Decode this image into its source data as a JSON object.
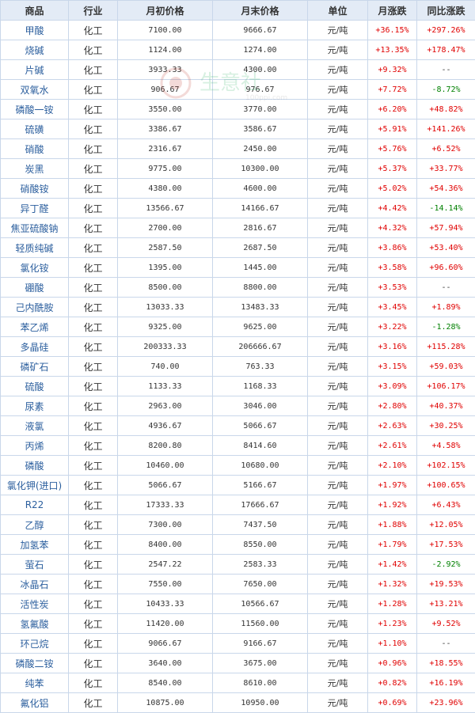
{
  "headers": [
    "商品",
    "行业",
    "月初价格",
    "月末价格",
    "单位",
    "月涨跌",
    "同比涨跌"
  ],
  "rows": [
    {
      "name": "甲酸",
      "industry": "化工",
      "start": "7100.00",
      "end": "9666.67",
      "unit": "元/吨",
      "mom": "+36.15%",
      "yoy": "+297.26%"
    },
    {
      "name": "烧碱",
      "industry": "化工",
      "start": "1124.00",
      "end": "1274.00",
      "unit": "元/吨",
      "mom": "+13.35%",
      "yoy": "+178.47%"
    },
    {
      "name": "片碱",
      "industry": "化工",
      "start": "3933.33",
      "end": "4300.00",
      "unit": "元/吨",
      "mom": "+9.32%",
      "yoy": "--"
    },
    {
      "name": "双氧水",
      "industry": "化工",
      "start": "906.67",
      "end": "976.67",
      "unit": "元/吨",
      "mom": "+7.72%",
      "yoy": "-8.72%"
    },
    {
      "name": "磷酸一铵",
      "industry": "化工",
      "start": "3550.00",
      "end": "3770.00",
      "unit": "元/吨",
      "mom": "+6.20%",
      "yoy": "+48.82%"
    },
    {
      "name": "硫磺",
      "industry": "化工",
      "start": "3386.67",
      "end": "3586.67",
      "unit": "元/吨",
      "mom": "+5.91%",
      "yoy": "+141.26%"
    },
    {
      "name": "硝酸",
      "industry": "化工",
      "start": "2316.67",
      "end": "2450.00",
      "unit": "元/吨",
      "mom": "+5.76%",
      "yoy": "+6.52%"
    },
    {
      "name": "炭黑",
      "industry": "化工",
      "start": "9775.00",
      "end": "10300.00",
      "unit": "元/吨",
      "mom": "+5.37%",
      "yoy": "+33.77%"
    },
    {
      "name": "硝酸铵",
      "industry": "化工",
      "start": "4380.00",
      "end": "4600.00",
      "unit": "元/吨",
      "mom": "+5.02%",
      "yoy": "+54.36%"
    },
    {
      "name": "异丁醛",
      "industry": "化工",
      "start": "13566.67",
      "end": "14166.67",
      "unit": "元/吨",
      "mom": "+4.42%",
      "yoy": "-14.14%"
    },
    {
      "name": "焦亚硫酸钠",
      "industry": "化工",
      "start": "2700.00",
      "end": "2816.67",
      "unit": "元/吨",
      "mom": "+4.32%",
      "yoy": "+57.94%"
    },
    {
      "name": "轻质纯碱",
      "industry": "化工",
      "start": "2587.50",
      "end": "2687.50",
      "unit": "元/吨",
      "mom": "+3.86%",
      "yoy": "+53.40%"
    },
    {
      "name": "氯化铵",
      "industry": "化工",
      "start": "1395.00",
      "end": "1445.00",
      "unit": "元/吨",
      "mom": "+3.58%",
      "yoy": "+96.60%"
    },
    {
      "name": "硼酸",
      "industry": "化工",
      "start": "8500.00",
      "end": "8800.00",
      "unit": "元/吨",
      "mom": "+3.53%",
      "yoy": "--"
    },
    {
      "name": "己内酰胺",
      "industry": "化工",
      "start": "13033.33",
      "end": "13483.33",
      "unit": "元/吨",
      "mom": "+3.45%",
      "yoy": "+1.89%"
    },
    {
      "name": "苯乙烯",
      "industry": "化工",
      "start": "9325.00",
      "end": "9625.00",
      "unit": "元/吨",
      "mom": "+3.22%",
      "yoy": "-1.28%"
    },
    {
      "name": "多晶硅",
      "industry": "化工",
      "start": "200333.33",
      "end": "206666.67",
      "unit": "元/吨",
      "mom": "+3.16%",
      "yoy": "+115.28%"
    },
    {
      "name": "磷矿石",
      "industry": "化工",
      "start": "740.00",
      "end": "763.33",
      "unit": "元/吨",
      "mom": "+3.15%",
      "yoy": "+59.03%"
    },
    {
      "name": "硫酸",
      "industry": "化工",
      "start": "1133.33",
      "end": "1168.33",
      "unit": "元/吨",
      "mom": "+3.09%",
      "yoy": "+106.17%"
    },
    {
      "name": "尿素",
      "industry": "化工",
      "start": "2963.00",
      "end": "3046.00",
      "unit": "元/吨",
      "mom": "+2.80%",
      "yoy": "+40.37%"
    },
    {
      "name": "液氯",
      "industry": "化工",
      "start": "4936.67",
      "end": "5066.67",
      "unit": "元/吨",
      "mom": "+2.63%",
      "yoy": "+30.25%"
    },
    {
      "name": "丙烯",
      "industry": "化工",
      "start": "8200.80",
      "end": "8414.60",
      "unit": "元/吨",
      "mom": "+2.61%",
      "yoy": "+4.58%"
    },
    {
      "name": "磷酸",
      "industry": "化工",
      "start": "10460.00",
      "end": "10680.00",
      "unit": "元/吨",
      "mom": "+2.10%",
      "yoy": "+102.15%"
    },
    {
      "name": "氯化钾(进口)",
      "industry": "化工",
      "start": "5066.67",
      "end": "5166.67",
      "unit": "元/吨",
      "mom": "+1.97%",
      "yoy": "+100.65%"
    },
    {
      "name": "R22",
      "industry": "化工",
      "start": "17333.33",
      "end": "17666.67",
      "unit": "元/吨",
      "mom": "+1.92%",
      "yoy": "+6.43%"
    },
    {
      "name": "乙醇",
      "industry": "化工",
      "start": "7300.00",
      "end": "7437.50",
      "unit": "元/吨",
      "mom": "+1.88%",
      "yoy": "+12.05%"
    },
    {
      "name": "加氢苯",
      "industry": "化工",
      "start": "8400.00",
      "end": "8550.00",
      "unit": "元/吨",
      "mom": "+1.79%",
      "yoy": "+17.53%"
    },
    {
      "name": "萤石",
      "industry": "化工",
      "start": "2547.22",
      "end": "2583.33",
      "unit": "元/吨",
      "mom": "+1.42%",
      "yoy": "-2.92%"
    },
    {
      "name": "冰晶石",
      "industry": "化工",
      "start": "7550.00",
      "end": "7650.00",
      "unit": "元/吨",
      "mom": "+1.32%",
      "yoy": "+19.53%"
    },
    {
      "name": "活性炭",
      "industry": "化工",
      "start": "10433.33",
      "end": "10566.67",
      "unit": "元/吨",
      "mom": "+1.28%",
      "yoy": "+13.21%"
    },
    {
      "name": "氢氟酸",
      "industry": "化工",
      "start": "11420.00",
      "end": "11560.00",
      "unit": "元/吨",
      "mom": "+1.23%",
      "yoy": "+9.52%"
    },
    {
      "name": "环己烷",
      "industry": "化工",
      "start": "9066.67",
      "end": "9166.67",
      "unit": "元/吨",
      "mom": "+1.10%",
      "yoy": "--"
    },
    {
      "name": "磷酸二铵",
      "industry": "化工",
      "start": "3640.00",
      "end": "3675.00",
      "unit": "元/吨",
      "mom": "+0.96%",
      "yoy": "+18.55%"
    },
    {
      "name": "纯苯",
      "industry": "化工",
      "start": "8540.00",
      "end": "8610.00",
      "unit": "元/吨",
      "mom": "+0.82%",
      "yoy": "+16.19%"
    },
    {
      "name": "氟化铝",
      "industry": "化工",
      "start": "10875.00",
      "end": "10950.00",
      "unit": "元/吨",
      "mom": "+0.69%",
      "yoy": "+23.96%"
    }
  ],
  "watermark": {
    "text": "生意社",
    "sub": "100ppi.com"
  },
  "colors": {
    "up": "#e00000",
    "down": "#008000",
    "header_bg": "#e3ebf6",
    "border": "#c9d7ea",
    "link": "#2c5f9e"
  }
}
